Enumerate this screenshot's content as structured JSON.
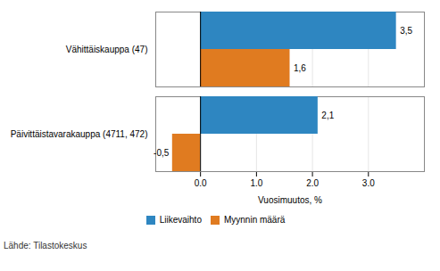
{
  "chart_data": {
    "type": "bar",
    "orientation": "horizontal",
    "categories": [
      "Päivittäistavarakauppa (4711, 472)",
      "Vähittäiskauppa (47)"
    ],
    "series": [
      {
        "name": "Liikevaihto",
        "color": "#2E86C1",
        "values": [
          2.1,
          3.5
        ],
        "value_labels": [
          "2,1",
          "3,5"
        ]
      },
      {
        "name": "Myynnin määrä",
        "color": "#E07B20",
        "values": [
          -0.5,
          1.6
        ],
        "value_labels": [
          "-0,5",
          "1,6"
        ]
      }
    ],
    "xlabel": "Vuosimuutos, %",
    "xlim": [
      -0.8,
      4.0
    ],
    "xticks": [
      0,
      1,
      2,
      3
    ],
    "grid": true,
    "legend": "bottom",
    "data_labels": true,
    "annotations": [
      "Lähde: Tilastokeskus"
    ]
  }
}
